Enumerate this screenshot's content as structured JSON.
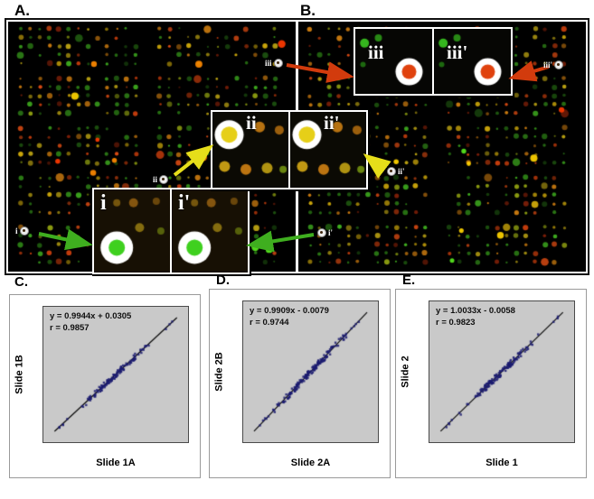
{
  "figure": {
    "panel_a_label": "A.",
    "panel_b_label": "B.",
    "insets": {
      "i": {
        "left_label": "i",
        "right_label": "i'"
      },
      "ii": {
        "left_label": "ii",
        "right_label": "ii'"
      },
      "iii": {
        "left_label": "iii",
        "right_label": "iii'"
      }
    },
    "markers": {
      "i": "i",
      "ii": "ii",
      "iii": "iii",
      "i_prime": "i'",
      "ii_prime": "ii'",
      "iii_prime": "iii'"
    },
    "colors": {
      "arrow_green": "#3fae1f",
      "arrow_yellow": "#e6de1a",
      "arrow_red": "#d23b0d",
      "spot_green": "#3fd01f",
      "spot_yellow": "#e6cf18",
      "spot_red": "#e0420e",
      "scatter_point": "#1b1b70",
      "plot_bg": "#c9c9c9"
    }
  },
  "charts": [
    {
      "letter": "C.",
      "equation": "y = 0.9944x + 0.0305",
      "r_label": "r = 0.9857",
      "xlabel": "Slide 1A",
      "ylabel": "Slide 1B"
    },
    {
      "letter": "D.",
      "equation": "y = 0.9909x - 0.0079",
      "r_label": "r = 0.9744",
      "xlabel": "Slide 2A",
      "ylabel": "Slide 2B"
    },
    {
      "letter": "E.",
      "equation": "y = 1.0033x - 0.0058",
      "r_label": "r = 0.9823",
      "xlabel": "Slide 1",
      "ylabel": "Slide 2"
    }
  ],
  "chart_data": [
    {
      "type": "scatter",
      "panel": "C.",
      "xlabel": "Slide 1A",
      "ylabel": "Slide 1B",
      "fit": {
        "slope": 0.9944,
        "intercept": 0.0305,
        "r": 0.9857,
        "equation_label": "y = 0.9944x + 0.0305",
        "r_text": "r = 0.9857"
      },
      "approx_n_points": 115,
      "points_description": "dense cluster of small dark-blue points lying along the straight fit line from lower-left to upper-right; sparse points near both ends",
      "ticks_visible": false,
      "grid": false,
      "legend": false
    },
    {
      "type": "scatter",
      "panel": "D.",
      "xlabel": "Slide 2A",
      "ylabel": "Slide 2B",
      "fit": {
        "slope": 0.9909,
        "intercept": -0.0079,
        "r": 0.9744,
        "equation_label": "y = 0.9909x - 0.0079",
        "r_text": "r = 0.9744"
      },
      "approx_n_points": 150,
      "points_description": "dense cluster of small dark-blue points along the fit line, heaviest near the center",
      "ticks_visible": false,
      "grid": false,
      "legend": false
    },
    {
      "type": "scatter",
      "panel": "E.",
      "xlabel": "Slide 1",
      "ylabel": "Slide 2",
      "fit": {
        "slope": 1.0033,
        "intercept": -0.0058,
        "r": 0.9823,
        "equation_label": "y = 1.0033x - 0.0058",
        "r_text": "r = 0.9823"
      },
      "approx_n_points": 125,
      "points_description": "dense cluster of small dark-blue points along the fit line with a few outliers near the lower-left",
      "ticks_visible": false,
      "grid": false,
      "legend": false
    }
  ]
}
